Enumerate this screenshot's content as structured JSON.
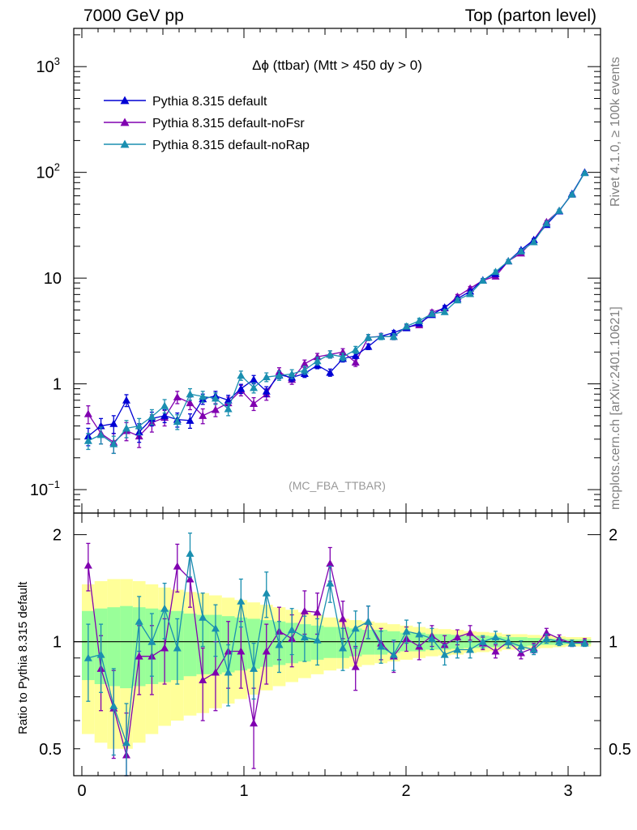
{
  "header": {
    "left": "7000 GeV pp",
    "right": "Top (parton level)"
  },
  "side_labels": {
    "rivet": "Rivet 4.1.0, ≥ 100k events",
    "mcplots": "mcplots.cern.ch [arXiv:2401.10621]"
  },
  "chart_data": {
    "type": "line",
    "title": "Δϕ (ttbar) (Mtt > 450 dy > 0)",
    "watermark": "(MC_FBA_TTBAR)",
    "xlabel": "",
    "ylabel": "",
    "ratio_ylabel": "Ratio to Pythia 8.315 default",
    "xlim": [
      -0.05,
      3.2
    ],
    "ylim": [
      0.06,
      2300
    ],
    "yscale": "log",
    "ratio_ylim": [
      0.42,
      2.3
    ],
    "x_ticks": [
      "0",
      "1",
      "2",
      "3"
    ],
    "y_ticks": [
      {
        "label": "10",
        "exp": "−1",
        "value": 0.1
      },
      {
        "label": "1",
        "exp": "",
        "value": 1
      },
      {
        "label": "10",
        "exp": "",
        "value": 10
      },
      {
        "label": "10",
        "exp": "2",
        "value": 100
      },
      {
        "label": "10",
        "exp": "3",
        "value": 1000
      }
    ],
    "ratio_y_ticks": [
      {
        "label": "0.5",
        "value": 0.5
      },
      {
        "label": "1",
        "value": 1
      },
      {
        "label": "2",
        "value": 2
      }
    ],
    "legend_position": "top-left",
    "x": [
      0.0393,
      0.1178,
      0.1963,
      0.2749,
      0.3534,
      0.432,
      0.5105,
      0.589,
      0.6676,
      0.7461,
      0.8247,
      0.9032,
      0.9817,
      1.0603,
      1.1388,
      1.2174,
      1.2959,
      1.3744,
      1.453,
      1.5315,
      1.6101,
      1.6886,
      1.7671,
      1.8457,
      1.9242,
      2.0028,
      2.0813,
      2.1598,
      2.2384,
      2.3169,
      2.3955,
      2.474,
      2.5525,
      2.6311,
      2.7096,
      2.7882,
      2.8667,
      2.9452,
      3.0238,
      3.1023
    ],
    "band": {
      "green_halfwidth": [
        0.22,
        0.24,
        0.25,
        0.26,
        0.25,
        0.24,
        0.23,
        0.22,
        0.2,
        0.19,
        0.19,
        0.18,
        0.17,
        0.16,
        0.15,
        0.14,
        0.13,
        0.12,
        0.11,
        0.1,
        0.1,
        0.09,
        0.08,
        0.08,
        0.07,
        0.06,
        0.06,
        0.05,
        0.05,
        0.045,
        0.04,
        0.04,
        0.035,
        0.03,
        0.03,
        0.025,
        0.02,
        0.02,
        0.015,
        0.015
      ],
      "yellow_halfwidth": [
        0.45,
        0.48,
        0.5,
        0.5,
        0.48,
        0.45,
        0.42,
        0.4,
        0.38,
        0.37,
        0.35,
        0.33,
        0.31,
        0.29,
        0.27,
        0.25,
        0.23,
        0.21,
        0.19,
        0.17,
        0.16,
        0.15,
        0.14,
        0.13,
        0.12,
        0.11,
        0.1,
        0.09,
        0.085,
        0.08,
        0.07,
        0.065,
        0.06,
        0.05,
        0.05,
        0.045,
        0.04,
        0.035,
        0.03,
        0.03
      ]
    },
    "series": [
      {
        "name": "Pythia 8.315 default",
        "color": "#0000d4",
        "values": [
          0.32,
          0.4,
          0.42,
          0.7,
          0.35,
          0.47,
          0.5,
          0.46,
          0.45,
          0.72,
          0.77,
          0.7,
          0.9,
          1.1,
          0.85,
          1.22,
          1.15,
          1.25,
          1.5,
          1.28,
          1.73,
          1.85,
          2.25,
          2.82,
          3.05,
          3.38,
          3.75,
          4.5,
          5.3,
          6.4,
          7.5,
          9.6,
          11.0,
          14.5,
          18.5,
          23.0,
          32.0,
          43.0,
          63.0,
          100.0
        ],
        "errors": [
          0.06,
          0.07,
          0.08,
          0.09,
          0.07,
          0.07,
          0.07,
          0.07,
          0.07,
          0.08,
          0.08,
          0.08,
          0.09,
          0.1,
          0.09,
          0.1,
          0.1,
          0.1,
          0.11,
          0.1,
          0.12,
          0.12,
          0.14,
          0.15,
          0.15,
          0.16,
          0.17,
          0.19,
          0.21,
          0.24,
          0.26,
          0.3,
          0.33,
          0.4,
          0.45,
          0.5,
          0.7,
          0.9,
          1.2,
          1.8
        ]
      },
      {
        "name": "Pythia 8.315 default-noFsr",
        "color": "#8000b0",
        "values": [
          0.52,
          0.34,
          0.28,
          0.36,
          0.32,
          0.43,
          0.48,
          0.75,
          0.66,
          0.5,
          0.57,
          0.66,
          0.87,
          0.65,
          0.8,
          1.3,
          1.1,
          1.55,
          1.8,
          1.9,
          2.0,
          1.6,
          2.75,
          2.82,
          2.8,
          3.45,
          3.6,
          4.75,
          5.2,
          6.7,
          8.0,
          9.5,
          10.4,
          14.5,
          17.2,
          23.0,
          34.0,
          43.5,
          62.0,
          100.0
        ],
        "errors": [
          0.1,
          0.07,
          0.06,
          0.07,
          0.07,
          0.08,
          0.08,
          0.1,
          0.09,
          0.08,
          0.08,
          0.09,
          0.1,
          0.09,
          0.1,
          0.12,
          0.11,
          0.13,
          0.14,
          0.15,
          0.15,
          0.14,
          0.18,
          0.18,
          0.18,
          0.2,
          0.2,
          0.24,
          0.25,
          0.3,
          0.33,
          0.38,
          0.4,
          0.5,
          0.55,
          0.7,
          0.9,
          1.1,
          1.4,
          2.0
        ]
      },
      {
        "name": "Pythia 8.315 default-noRap",
        "color": "#1a8fb0",
        "values": [
          0.29,
          0.33,
          0.27,
          0.38,
          0.4,
          0.49,
          0.62,
          0.44,
          0.8,
          0.76,
          0.73,
          0.58,
          1.2,
          0.92,
          1.16,
          1.2,
          1.24,
          1.35,
          1.65,
          1.9,
          1.8,
          2.1,
          2.75,
          2.8,
          2.8,
          3.5,
          3.95,
          4.6,
          4.8,
          6.2,
          7.1,
          9.5,
          11.5,
          14.5,
          18.0,
          22.0,
          33.0,
          43.5,
          62.0,
          99.0
        ],
        "errors": [
          0.05,
          0.06,
          0.05,
          0.07,
          0.07,
          0.08,
          0.09,
          0.07,
          0.1,
          0.09,
          0.09,
          0.08,
          0.12,
          0.1,
          0.11,
          0.12,
          0.12,
          0.12,
          0.14,
          0.15,
          0.15,
          0.16,
          0.18,
          0.18,
          0.18,
          0.2,
          0.21,
          0.24,
          0.24,
          0.28,
          0.3,
          0.37,
          0.42,
          0.5,
          0.55,
          0.65,
          0.9,
          1.1,
          1.4,
          2.0
        ]
      }
    ],
    "ratios": [
      {
        "name": "Pythia 8.315 default-noFsr",
        "values": [
          1.64,
          0.84,
          0.65,
          0.48,
          0.91,
          0.91,
          0.96,
          1.63,
          1.5,
          0.78,
          0.82,
          0.94,
          0.94,
          0.59,
          0.94,
          1.07,
          1.02,
          1.22,
          1.21,
          1.66,
          1.16,
          0.85,
          1.14,
          0.99,
          0.91,
          1.02,
          0.97,
          1.04,
          0.98,
          1.03,
          1.06,
          0.99,
          0.94,
          1.0,
          0.93,
          0.96,
          1.06,
          1.02,
          0.99,
          1.0
        ],
        "errors": [
          0.25,
          0.2,
          0.18,
          0.15,
          0.2,
          0.2,
          0.2,
          0.25,
          0.25,
          0.18,
          0.18,
          0.2,
          0.2,
          0.15,
          0.18,
          0.18,
          0.17,
          0.17,
          0.16,
          0.18,
          0.14,
          0.12,
          0.12,
          0.1,
          0.09,
          0.08,
          0.08,
          0.07,
          0.06,
          0.05,
          0.05,
          0.04,
          0.04,
          0.04,
          0.035,
          0.03,
          0.03,
          0.025,
          0.02,
          0.02
        ]
      },
      {
        "name": "Pythia 8.315 default-noRap",
        "values": [
          0.9,
          0.92,
          0.66,
          0.52,
          1.14,
          1.0,
          1.24,
          0.96,
          1.77,
          1.17,
          1.09,
          0.82,
          1.3,
          0.84,
          1.37,
          0.98,
          1.08,
          1.03,
          1.01,
          1.46,
          0.96,
          1.09,
          1.14,
          0.97,
          0.92,
          1.07,
          1.05,
          1.02,
          0.92,
          0.95,
          0.95,
          1.0,
          1.03,
          1.0,
          0.97,
          0.95,
          1.02,
          1.0,
          0.99,
          0.99
        ],
        "errors": [
          0.22,
          0.2,
          0.18,
          0.15,
          0.2,
          0.2,
          0.22,
          0.2,
          0.25,
          0.2,
          0.18,
          0.16,
          0.2,
          0.15,
          0.2,
          0.16,
          0.16,
          0.15,
          0.15,
          0.17,
          0.13,
          0.13,
          0.12,
          0.1,
          0.09,
          0.08,
          0.08,
          0.07,
          0.06,
          0.05,
          0.05,
          0.04,
          0.04,
          0.04,
          0.035,
          0.03,
          0.03,
          0.025,
          0.02,
          0.02
        ]
      }
    ]
  }
}
